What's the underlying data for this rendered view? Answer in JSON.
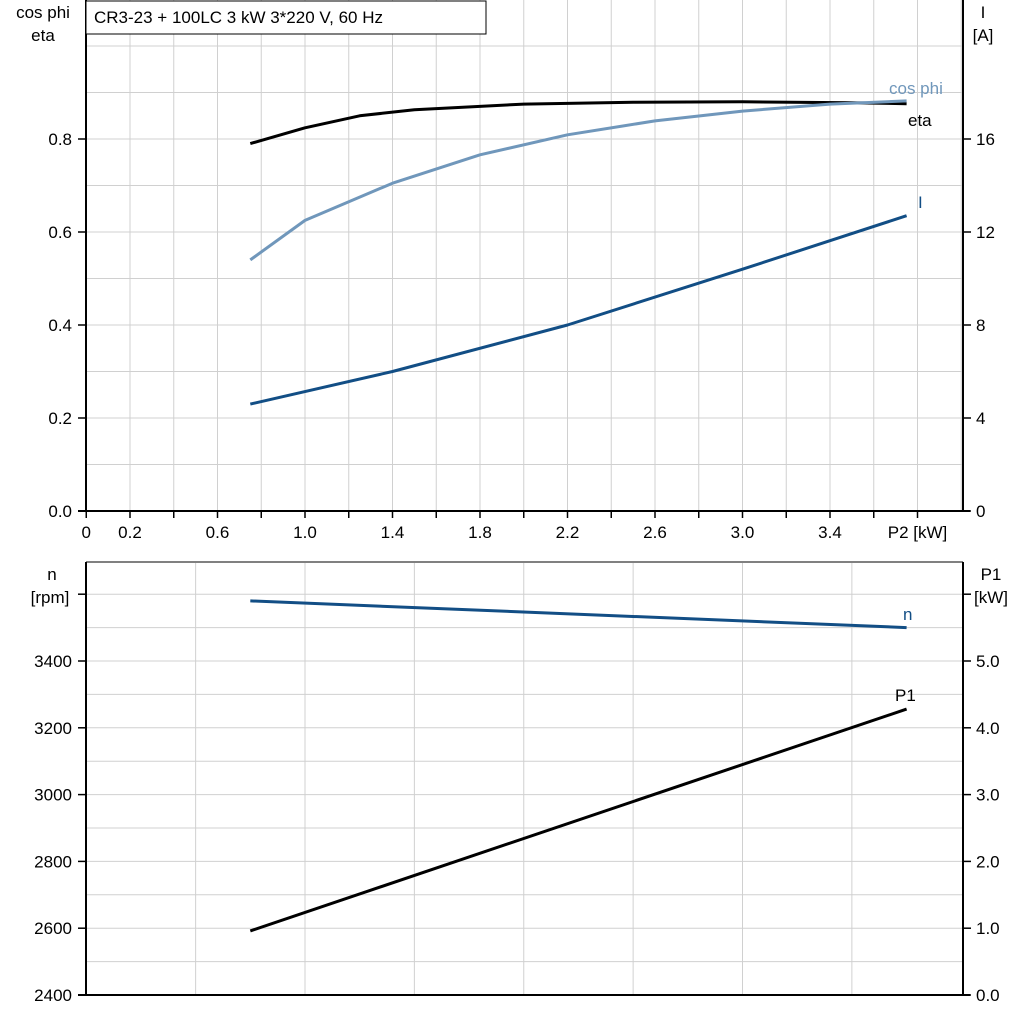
{
  "chart_data": [
    {
      "type": "line",
      "title": "CR3-23 + 100LC   3 kW   3*220 V, 60 Hz",
      "xlabel": "P2 [kW]",
      "ylabel_left": [
        "cos phi",
        "eta"
      ],
      "ylabel_right": [
        "I",
        "[A]"
      ],
      "xlim": [
        0,
        4.0
      ],
      "ylim_left": [
        0,
        1.1
      ],
      "ylim_right": [
        0,
        22
      ],
      "x_tick_labels": [
        "0",
        "0.2",
        "0.6",
        "1.0",
        "1.4",
        "1.8",
        "2.2",
        "2.6",
        "3.0",
        "3.4"
      ],
      "y_left_tick_labels": [
        "0.0",
        "0.2",
        "0.4",
        "0.6",
        "0.8"
      ],
      "y_right_tick_labels": [
        "0",
        "4",
        "8",
        "12",
        "16"
      ],
      "grid": true,
      "series": [
        {
          "name": "eta",
          "axis": "left",
          "color": "#000000",
          "x": [
            0.75,
            1.0,
            1.25,
            1.5,
            2.0,
            2.5,
            3.0,
            3.5,
            3.75
          ],
          "y": [
            0.79,
            0.824,
            0.85,
            0.863,
            0.875,
            0.879,
            0.88,
            0.878,
            0.876
          ]
        },
        {
          "name": "cos phi",
          "axis": "left",
          "color": "#7097bb",
          "x": [
            0.75,
            1.0,
            1.4,
            1.8,
            2.2,
            2.6,
            3.0,
            3.4,
            3.75
          ],
          "y": [
            0.54,
            0.625,
            0.705,
            0.766,
            0.809,
            0.839,
            0.86,
            0.875,
            0.882
          ]
        },
        {
          "name": "I",
          "axis": "right",
          "color": "#124e85",
          "x": [
            0.75,
            1.4,
            2.2,
            3.0,
            3.75
          ],
          "y": [
            4.6,
            6.0,
            8.0,
            10.4,
            12.7
          ]
        }
      ]
    },
    {
      "type": "line",
      "xlim": [
        0,
        4.0
      ],
      "ylabel_left": [
        "n",
        "[rpm]"
      ],
      "ylabel_right": [
        "P1",
        "[kW]"
      ],
      "ylim_left": [
        2400,
        3700
      ],
      "ylim_right": [
        0,
        6.5
      ],
      "y_left_tick_labels": [
        "2400",
        "2600",
        "2800",
        "3000",
        "3200",
        "3400"
      ],
      "y_right_tick_labels": [
        "0.0",
        "1.0",
        "2.0",
        "3.0",
        "4.0",
        "5.0"
      ],
      "grid": true,
      "series": [
        {
          "name": "n",
          "axis": "left",
          "color": "#124e85",
          "x": [
            0.75,
            3.75
          ],
          "y": [
            3580,
            3500
          ]
        },
        {
          "name": "P1",
          "axis": "right",
          "color": "#000000",
          "x": [
            0.75,
            3.75
          ],
          "y": [
            0.96,
            4.28
          ]
        }
      ]
    }
  ]
}
